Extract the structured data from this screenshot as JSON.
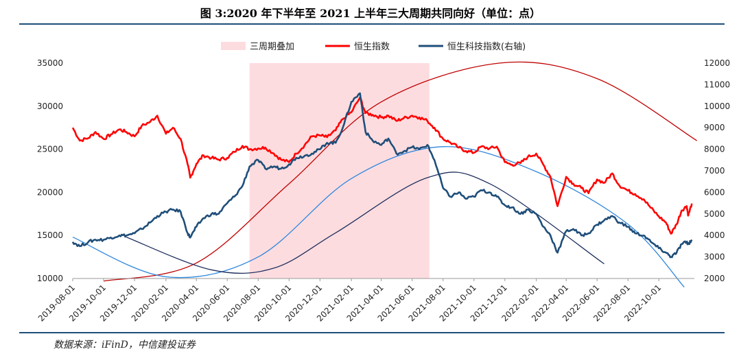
{
  "title": "图 3:2020 年下半年至 2021 上半年三大周期共同向好（单位：点）",
  "source": "数据来源：iFinD，中信建投证券",
  "chart_data": {
    "type": "line",
    "title": "图 3:2020 年下半年至 2021 上半年三大周期共同向好（单位：点）",
    "x_tick_labels": [
      "2019-08-01",
      "2019-10-01",
      "2019-12-01",
      "2020-02-01",
      "2020-04-01",
      "2020-06-01",
      "2020-08-01",
      "2020-10-01",
      "2020-12-01",
      "2021-02-01",
      "2021-04-01",
      "2021-06-01",
      "2021-08-01",
      "2021-10-01",
      "2021-12-01",
      "2022-02-01",
      "2022-04-01",
      "2022-06-01",
      "2022-08-01",
      "2022-10-01"
    ],
    "y_left": {
      "min": 10000,
      "max": 35000,
      "ticks": [
        "10000",
        "15000",
        "20000",
        "25000",
        "30000",
        "35000"
      ]
    },
    "y_right": {
      "min": 2000,
      "max": 12000,
      "ticks": [
        "2000",
        "3000",
        "4000",
        "5000",
        "6000",
        "7000",
        "8000",
        "9000",
        "10000",
        "11000",
        "12000"
      ]
    },
    "shaded_region": {
      "name": "三周期叠加",
      "start": "2020-07-15",
      "end": "2021-07-05",
      "color": "#fddcdf"
    },
    "legend_position": "top",
    "series": [
      {
        "name": "恒生指数",
        "axis": "left",
        "color": "#ff0000",
        "points": [
          [
            "2019-08-01",
            27500
          ],
          [
            "2019-08-15",
            26000
          ],
          [
            "2019-09-01",
            26300
          ],
          [
            "2019-09-15",
            27000
          ],
          [
            "2019-10-01",
            26200
          ],
          [
            "2019-10-15",
            26700
          ],
          [
            "2019-11-01",
            27300
          ],
          [
            "2019-11-15",
            27000
          ],
          [
            "2019-12-01",
            26500
          ],
          [
            "2019-12-15",
            27700
          ],
          [
            "2020-01-01",
            28200
          ],
          [
            "2020-01-15",
            28900
          ],
          [
            "2020-02-01",
            26800
          ],
          [
            "2020-02-15",
            27500
          ],
          [
            "2020-03-01",
            26200
          ],
          [
            "2020-03-15",
            23200
          ],
          [
            "2020-03-20",
            21700
          ],
          [
            "2020-04-01",
            23300
          ],
          [
            "2020-04-15",
            24300
          ],
          [
            "2020-05-01",
            24000
          ],
          [
            "2020-05-15",
            23800
          ],
          [
            "2020-06-01",
            24000
          ],
          [
            "2020-06-15",
            24700
          ],
          [
            "2020-07-01",
            25400
          ],
          [
            "2020-07-15",
            25000
          ],
          [
            "2020-08-01",
            25100
          ],
          [
            "2020-08-15",
            25200
          ],
          [
            "2020-09-01",
            24500
          ],
          [
            "2020-09-15",
            23800
          ],
          [
            "2020-10-01",
            23500
          ],
          [
            "2020-10-15",
            24500
          ],
          [
            "2020-11-01",
            25500
          ],
          [
            "2020-11-15",
            26500
          ],
          [
            "2020-12-01",
            26600
          ],
          [
            "2020-12-15",
            26400
          ],
          [
            "2021-01-01",
            27200
          ],
          [
            "2021-01-15",
            28500
          ],
          [
            "2021-02-01",
            29300
          ],
          [
            "2021-02-18",
            31000
          ],
          [
            "2021-03-01",
            29200
          ],
          [
            "2021-03-15",
            29000
          ],
          [
            "2021-04-01",
            28700
          ],
          [
            "2021-04-15",
            28900
          ],
          [
            "2021-05-01",
            28300
          ],
          [
            "2021-05-15",
            28600
          ],
          [
            "2021-06-01",
            28900
          ],
          [
            "2021-06-15",
            28700
          ],
          [
            "2021-07-01",
            28300
          ],
          [
            "2021-07-15",
            27500
          ],
          [
            "2021-08-01",
            26200
          ],
          [
            "2021-08-15",
            25800
          ],
          [
            "2021-09-01",
            25200
          ],
          [
            "2021-09-15",
            24800
          ],
          [
            "2021-10-01",
            24600
          ],
          [
            "2021-10-15",
            25300
          ],
          [
            "2021-11-01",
            25100
          ],
          [
            "2021-11-15",
            25300
          ],
          [
            "2021-12-01",
            23500
          ],
          [
            "2021-12-15",
            23200
          ],
          [
            "2022-01-01",
            23400
          ],
          [
            "2022-01-15",
            24100
          ],
          [
            "2022-02-01",
            24500
          ],
          [
            "2022-02-15",
            23200
          ],
          [
            "2022-03-01",
            21800
          ],
          [
            "2022-03-15",
            18400
          ],
          [
            "2022-04-01",
            21800
          ],
          [
            "2022-04-15",
            21000
          ],
          [
            "2022-05-01",
            20500
          ],
          [
            "2022-05-15",
            19900
          ],
          [
            "2022-06-01",
            21500
          ],
          [
            "2022-06-15",
            21100
          ],
          [
            "2022-07-01",
            22200
          ],
          [
            "2022-07-15",
            20800
          ],
          [
            "2022-08-01",
            20200
          ],
          [
            "2022-08-15",
            19800
          ],
          [
            "2022-09-01",
            19200
          ],
          [
            "2022-09-15",
            18200
          ],
          [
            "2022-10-01",
            17200
          ],
          [
            "2022-10-15",
            16500
          ],
          [
            "2022-10-25",
            15200
          ],
          [
            "2022-11-05",
            16300
          ],
          [
            "2022-11-15",
            17900
          ],
          [
            "2022-11-25",
            18400
          ],
          [
            "2022-11-28",
            17300
          ],
          [
            "2022-12-05",
            18700
          ]
        ]
      },
      {
        "name": "恒生科技指数(右轴)",
        "axis": "right",
        "color": "#1f4e79",
        "points": [
          [
            "2019-08-01",
            3700
          ],
          [
            "2019-08-15",
            3500
          ],
          [
            "2019-09-01",
            3700
          ],
          [
            "2019-09-15",
            3800
          ],
          [
            "2019-10-01",
            3800
          ],
          [
            "2019-10-15",
            3900
          ],
          [
            "2019-11-01",
            4000
          ],
          [
            "2019-11-15",
            4000
          ],
          [
            "2019-12-01",
            4100
          ],
          [
            "2019-12-15",
            4300
          ],
          [
            "2020-01-01",
            4600
          ],
          [
            "2020-01-15",
            4900
          ],
          [
            "2020-02-01",
            5100
          ],
          [
            "2020-02-15",
            5200
          ],
          [
            "2020-03-01",
            5100
          ],
          [
            "2020-03-15",
            4100
          ],
          [
            "2020-03-20",
            3900
          ],
          [
            "2020-04-01",
            4400
          ],
          [
            "2020-04-15",
            4800
          ],
          [
            "2020-05-01",
            5000
          ],
          [
            "2020-05-15",
            5000
          ],
          [
            "2020-06-01",
            5500
          ],
          [
            "2020-06-15",
            5800
          ],
          [
            "2020-07-01",
            6300
          ],
          [
            "2020-07-15",
            7200
          ],
          [
            "2020-08-01",
            7500
          ],
          [
            "2020-08-15",
            7100
          ],
          [
            "2020-09-01",
            7200
          ],
          [
            "2020-09-15",
            7100
          ],
          [
            "2020-10-01",
            7300
          ],
          [
            "2020-10-15",
            7600
          ],
          [
            "2020-11-01",
            7700
          ],
          [
            "2020-11-15",
            7800
          ],
          [
            "2020-12-01",
            8000
          ],
          [
            "2020-12-15",
            8300
          ],
          [
            "2021-01-01",
            8300
          ],
          [
            "2021-01-15",
            9000
          ],
          [
            "2021-02-01",
            10200
          ],
          [
            "2021-02-18",
            10600
          ],
          [
            "2021-03-01",
            8800
          ],
          [
            "2021-03-15",
            8400
          ],
          [
            "2021-04-01",
            8200
          ],
          [
            "2021-04-15",
            8500
          ],
          [
            "2021-05-01",
            7800
          ],
          [
            "2021-05-15",
            7900
          ],
          [
            "2021-06-01",
            8100
          ],
          [
            "2021-06-15",
            8000
          ],
          [
            "2021-07-01",
            8200
          ],
          [
            "2021-07-15",
            7500
          ],
          [
            "2021-08-01",
            6200
          ],
          [
            "2021-08-15",
            5800
          ],
          [
            "2021-09-01",
            6000
          ],
          [
            "2021-09-15",
            5700
          ],
          [
            "2021-10-01",
            5800
          ],
          [
            "2021-10-15",
            6100
          ],
          [
            "2021-11-01",
            6000
          ],
          [
            "2021-11-15",
            5800
          ],
          [
            "2021-12-01",
            5400
          ],
          [
            "2021-12-15",
            5300
          ],
          [
            "2022-01-01",
            5000
          ],
          [
            "2022-01-15",
            5200
          ],
          [
            "2022-02-01",
            5000
          ],
          [
            "2022-02-15",
            4400
          ],
          [
            "2022-03-01",
            4000
          ],
          [
            "2022-03-15",
            3200
          ],
          [
            "2022-04-01",
            4200
          ],
          [
            "2022-04-15",
            4300
          ],
          [
            "2022-05-01",
            4000
          ],
          [
            "2022-05-15",
            4100
          ],
          [
            "2022-06-01",
            4500
          ],
          [
            "2022-06-15",
            4700
          ],
          [
            "2022-07-01",
            4900
          ],
          [
            "2022-07-15",
            4600
          ],
          [
            "2022-08-01",
            4400
          ],
          [
            "2022-08-15",
            4100
          ],
          [
            "2022-09-01",
            4000
          ],
          [
            "2022-09-15",
            3700
          ],
          [
            "2022-10-01",
            3400
          ],
          [
            "2022-10-15",
            3200
          ],
          [
            "2022-10-25",
            3000
          ],
          [
            "2022-11-05",
            3200
          ],
          [
            "2022-11-15",
            3600
          ],
          [
            "2022-11-25",
            3700
          ],
          [
            "2022-11-28",
            3600
          ],
          [
            "2022-12-05",
            3800
          ]
        ]
      }
    ],
    "cycle_curves": [
      {
        "color": "#c00000",
        "axis": "left",
        "points": [
          [
            "2019-10-01",
            9700
          ],
          [
            "2020-04-01",
            11800
          ],
          [
            "2020-10-01",
            21000
          ],
          [
            "2021-04-01",
            30500
          ],
          [
            "2021-11-20",
            35000
          ],
          [
            "2022-06-01",
            33200
          ],
          [
            "2022-12-15",
            26000
          ]
        ]
      },
      {
        "color": "#2e86de",
        "axis": "left",
        "points": [
          [
            "2019-08-01",
            14800
          ],
          [
            "2020-02-01",
            10200
          ],
          [
            "2020-08-01",
            12500
          ],
          [
            "2021-02-01",
            21600
          ],
          [
            "2021-08-01",
            25300
          ],
          [
            "2022-02-01",
            22400
          ],
          [
            "2022-08-01",
            16300
          ],
          [
            "2022-11-20",
            9000
          ]
        ]
      },
      {
        "color": "#1f2f5e",
        "axis": "left",
        "points": [
          [
            "2019-11-15",
            14800
          ],
          [
            "2020-05-01",
            11000
          ],
          [
            "2020-09-01",
            11200
          ],
          [
            "2021-01-01",
            15300
          ],
          [
            "2021-07-01",
            21700
          ],
          [
            "2021-11-01",
            21000
          ],
          [
            "2022-06-15",
            11700
          ]
        ]
      }
    ]
  },
  "legend": [
    {
      "label": "三周期叠加",
      "kind": "box",
      "color": "#fddcdf"
    },
    {
      "label": "恒生指数",
      "kind": "line",
      "color": "#ff0000"
    },
    {
      "label": "恒生科技指数(右轴)",
      "kind": "line",
      "color": "#1f4e79"
    }
  ]
}
